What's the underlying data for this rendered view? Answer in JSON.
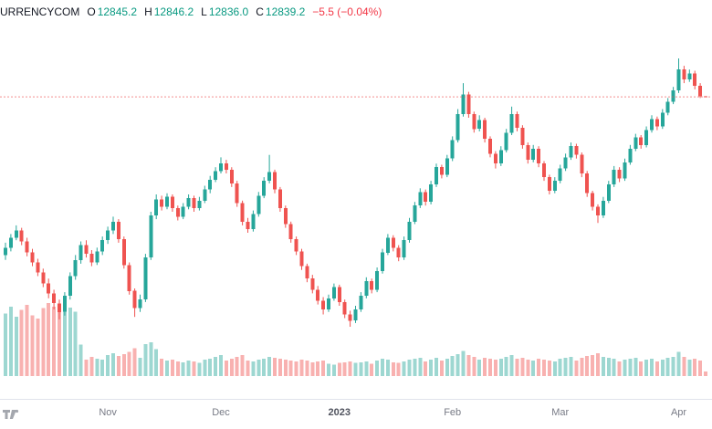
{
  "header": {
    "symbol": "URRENCYCOM",
    "o_label": "O",
    "open": "12845.2",
    "h_label": "H",
    "high": "12846.2",
    "l_label": "L",
    "low": "12836.0",
    "c_label": "C",
    "close": "12839.2",
    "change": "−5.5 (−0.04%)"
  },
  "colors": {
    "up": "#26a69a",
    "down": "#ef5350",
    "vol_up": "rgba(38,166,154,0.45)",
    "vol_down": "rgba(239,83,80,0.45)",
    "legend_value": "#089981",
    "change_text": "#f23645",
    "price_line": "#ef5350",
    "axis_text": "#787b86",
    "grid_line": "#e0e3eb",
    "logo_gray": "#9598a1"
  },
  "chart_data": {
    "type": "candlestick",
    "title": "",
    "last_bar": {
      "open": 12845.2,
      "high": 12846.2,
      "low": 12836.0,
      "close": 12839.2,
      "change": -5.5,
      "change_pct": -0.04
    },
    "price_range_estimate": [
      10980,
      13150
    ],
    "grid": false,
    "x_axis_labels": [
      {
        "label": "Nov",
        "index": 19
      },
      {
        "label": "Dec",
        "index": 40
      },
      {
        "label": "2023",
        "index": 62,
        "emphasis": true
      },
      {
        "label": "Feb",
        "index": 83
      },
      {
        "label": "Mar",
        "index": 103
      },
      {
        "label": "Apr",
        "index": 125
      }
    ],
    "candles": [
      [
        11560,
        11660,
        11520,
        11620,
        360
      ],
      [
        11620,
        11730,
        11590,
        11700,
        400
      ],
      [
        11700,
        11800,
        11680,
        11760,
        340
      ],
      [
        11760,
        11780,
        11640,
        11670,
        380
      ],
      [
        11670,
        11700,
        11550,
        11580,
        410
      ],
      [
        11580,
        11610,
        11470,
        11500,
        350
      ],
      [
        11500,
        11530,
        11390,
        11420,
        330
      ],
      [
        11420,
        11450,
        11300,
        11330,
        390
      ],
      [
        11330,
        11370,
        11210,
        11250,
        420
      ],
      [
        11250,
        11280,
        11120,
        11170,
        400
      ],
      [
        11170,
        11200,
        11040,
        11100,
        415
      ],
      [
        11100,
        11260,
        11070,
        11230,
        405
      ],
      [
        11230,
        11420,
        11200,
        11390,
        395
      ],
      [
        11390,
        11560,
        11360,
        11520,
        370
      ],
      [
        11520,
        11670,
        11490,
        11640,
        180
      ],
      [
        11640,
        11680,
        11540,
        11570,
        95
      ],
      [
        11570,
        11600,
        11470,
        11500,
        110
      ],
      [
        11500,
        11620,
        11480,
        11590,
        100
      ],
      [
        11590,
        11710,
        11560,
        11680,
        95
      ],
      [
        11680,
        11790,
        11650,
        11760,
        120
      ],
      [
        11760,
        11870,
        11730,
        11830,
        130
      ],
      [
        11830,
        11850,
        11660,
        11690,
        115
      ],
      [
        11690,
        11710,
        11450,
        11480,
        125
      ],
      [
        11480,
        11500,
        11240,
        11270,
        140
      ],
      [
        11270,
        11290,
        11060,
        11130,
        160
      ],
      [
        11130,
        11240,
        11100,
        11200,
        105
      ],
      [
        11200,
        11570,
        11180,
        11540,
        185
      ],
      [
        11540,
        11910,
        11520,
        11880,
        195
      ],
      [
        11880,
        12050,
        11850,
        12010,
        155
      ],
      [
        12010,
        12040,
        11920,
        11950,
        100
      ],
      [
        11950,
        12060,
        11930,
        12030,
        90
      ],
      [
        12030,
        12050,
        11910,
        11940,
        95
      ],
      [
        11940,
        11960,
        11840,
        11870,
        85
      ],
      [
        11870,
        11980,
        11850,
        11950,
        80
      ],
      [
        11950,
        12050,
        11930,
        12020,
        90
      ],
      [
        12020,
        12040,
        11910,
        11940,
        85
      ],
      [
        11940,
        12030,
        11920,
        12000,
        75
      ],
      [
        12000,
        12120,
        11980,
        12090,
        95
      ],
      [
        12090,
        12200,
        12060,
        12170,
        100
      ],
      [
        12170,
        12270,
        12150,
        12240,
        110
      ],
      [
        12240,
        12350,
        12220,
        12300,
        120
      ],
      [
        12300,
        12330,
        12220,
        12250,
        90
      ],
      [
        12250,
        12270,
        12110,
        12140,
        100
      ],
      [
        12140,
        12160,
        11950,
        11980,
        110
      ],
      [
        11980,
        12000,
        11800,
        11830,
        120
      ],
      [
        11830,
        11860,
        11740,
        11770,
        90
      ],
      [
        11770,
        11920,
        11750,
        11890,
        85
      ],
      [
        11890,
        12070,
        11870,
        12040,
        95
      ],
      [
        12040,
        12190,
        12020,
        12160,
        100
      ],
      [
        12160,
        12370,
        12140,
        12230,
        110
      ],
      [
        12230,
        12250,
        12060,
        12090,
        105
      ],
      [
        12090,
        12110,
        11910,
        11940,
        100
      ],
      [
        11940,
        11960,
        11780,
        11810,
        95
      ],
      [
        11810,
        11830,
        11660,
        11690,
        90
      ],
      [
        11690,
        11710,
        11560,
        11590,
        85
      ],
      [
        11590,
        11610,
        11440,
        11470,
        95
      ],
      [
        11470,
        11490,
        11340,
        11370,
        90
      ],
      [
        11370,
        11400,
        11250,
        11280,
        80
      ],
      [
        11280,
        11310,
        11160,
        11190,
        85
      ],
      [
        11190,
        11220,
        11080,
        11120,
        90
      ],
      [
        11120,
        11240,
        11100,
        11210,
        70
      ],
      [
        11210,
        11330,
        11190,
        11300,
        65
      ],
      [
        11300,
        11320,
        11150,
        11180,
        75
      ],
      [
        11180,
        11200,
        11050,
        11080,
        80
      ],
      [
        11080,
        11110,
        10980,
        11030,
        85
      ],
      [
        11030,
        11150,
        11010,
        11120,
        75
      ],
      [
        11120,
        11260,
        11100,
        11230,
        80
      ],
      [
        11230,
        11380,
        11210,
        11350,
        85
      ],
      [
        11350,
        11370,
        11250,
        11280,
        70
      ],
      [
        11280,
        11460,
        11260,
        11430,
        90
      ],
      [
        11430,
        11610,
        11410,
        11580,
        100
      ],
      [
        11580,
        11730,
        11560,
        11700,
        95
      ],
      [
        11700,
        11720,
        11590,
        11620,
        80
      ],
      [
        11620,
        11640,
        11510,
        11540,
        75
      ],
      [
        11540,
        11710,
        11520,
        11680,
        85
      ],
      [
        11680,
        11860,
        11660,
        11830,
        95
      ],
      [
        11830,
        11990,
        11810,
        11960,
        100
      ],
      [
        11960,
        12100,
        11940,
        12070,
        105
      ],
      [
        12070,
        12090,
        11960,
        11990,
        85
      ],
      [
        11990,
        12160,
        11970,
        12130,
        95
      ],
      [
        12130,
        12300,
        12110,
        12270,
        105
      ],
      [
        12270,
        12290,
        12180,
        12210,
        90
      ],
      [
        12210,
        12370,
        12190,
        12340,
        100
      ],
      [
        12340,
        12520,
        12320,
        12490,
        115
      ],
      [
        12490,
        12740,
        12470,
        12700,
        125
      ],
      [
        12700,
        12950,
        12680,
        12860,
        145
      ],
      [
        12860,
        12880,
        12670,
        12700,
        120
      ],
      [
        12700,
        12720,
        12550,
        12580,
        110
      ],
      [
        12580,
        12690,
        12560,
        12650,
        95
      ],
      [
        12650,
        12670,
        12470,
        12500,
        105
      ],
      [
        12500,
        12520,
        12350,
        12380,
        100
      ],
      [
        12380,
        12400,
        12260,
        12300,
        95
      ],
      [
        12300,
        12440,
        12280,
        12410,
        100
      ],
      [
        12410,
        12580,
        12390,
        12550,
        110
      ],
      [
        12550,
        12760,
        12530,
        12700,
        120
      ],
      [
        12700,
        12720,
        12560,
        12590,
        100
      ],
      [
        12590,
        12610,
        12420,
        12450,
        105
      ],
      [
        12450,
        12470,
        12300,
        12330,
        95
      ],
      [
        12330,
        12450,
        12310,
        12420,
        90
      ],
      [
        12420,
        12440,
        12270,
        12300,
        100
      ],
      [
        12300,
        12320,
        12160,
        12190,
        95
      ],
      [
        12190,
        12210,
        12050,
        12080,
        90
      ],
      [
        12080,
        12190,
        12060,
        12160,
        85
      ],
      [
        12160,
        12290,
        12140,
        12260,
        100
      ],
      [
        12260,
        12380,
        12240,
        12350,
        105
      ],
      [
        12350,
        12470,
        12330,
        12440,
        110
      ],
      [
        12440,
        12460,
        12340,
        12370,
        90
      ],
      [
        12370,
        12390,
        12190,
        12220,
        105
      ],
      [
        12220,
        12240,
        12030,
        12060,
        115
      ],
      [
        12060,
        12080,
        11920,
        11950,
        120
      ],
      [
        11950,
        11970,
        11820,
        11880,
        130
      ],
      [
        11880,
        12030,
        11860,
        12000,
        110
      ],
      [
        12000,
        12160,
        11980,
        12130,
        105
      ],
      [
        12130,
        12280,
        12110,
        12250,
        100
      ],
      [
        12250,
        12270,
        12150,
        12180,
        85
      ],
      [
        12180,
        12340,
        12160,
        12310,
        95
      ],
      [
        12310,
        12450,
        12290,
        12420,
        100
      ],
      [
        12420,
        12540,
        12400,
        12510,
        105
      ],
      [
        12510,
        12530,
        12420,
        12450,
        85
      ],
      [
        12450,
        12600,
        12430,
        12570,
        95
      ],
      [
        12570,
        12690,
        12550,
        12660,
        100
      ],
      [
        12660,
        12680,
        12570,
        12600,
        85
      ],
      [
        12600,
        12740,
        12580,
        12710,
        95
      ],
      [
        12710,
        12830,
        12690,
        12800,
        105
      ],
      [
        12800,
        12920,
        12780,
        12890,
        110
      ],
      [
        12890,
        13150,
        12870,
        13060,
        140
      ],
      [
        13060,
        13090,
        12950,
        12980,
        110
      ],
      [
        12980,
        13060,
        12960,
        13030,
        95
      ],
      [
        13030,
        13050,
        12900,
        12930,
        100
      ],
      [
        12930,
        12950,
        12830,
        12844.7,
        90
      ],
      [
        12845.2,
        12846.2,
        12836.0,
        12839.2,
        25
      ]
    ]
  }
}
